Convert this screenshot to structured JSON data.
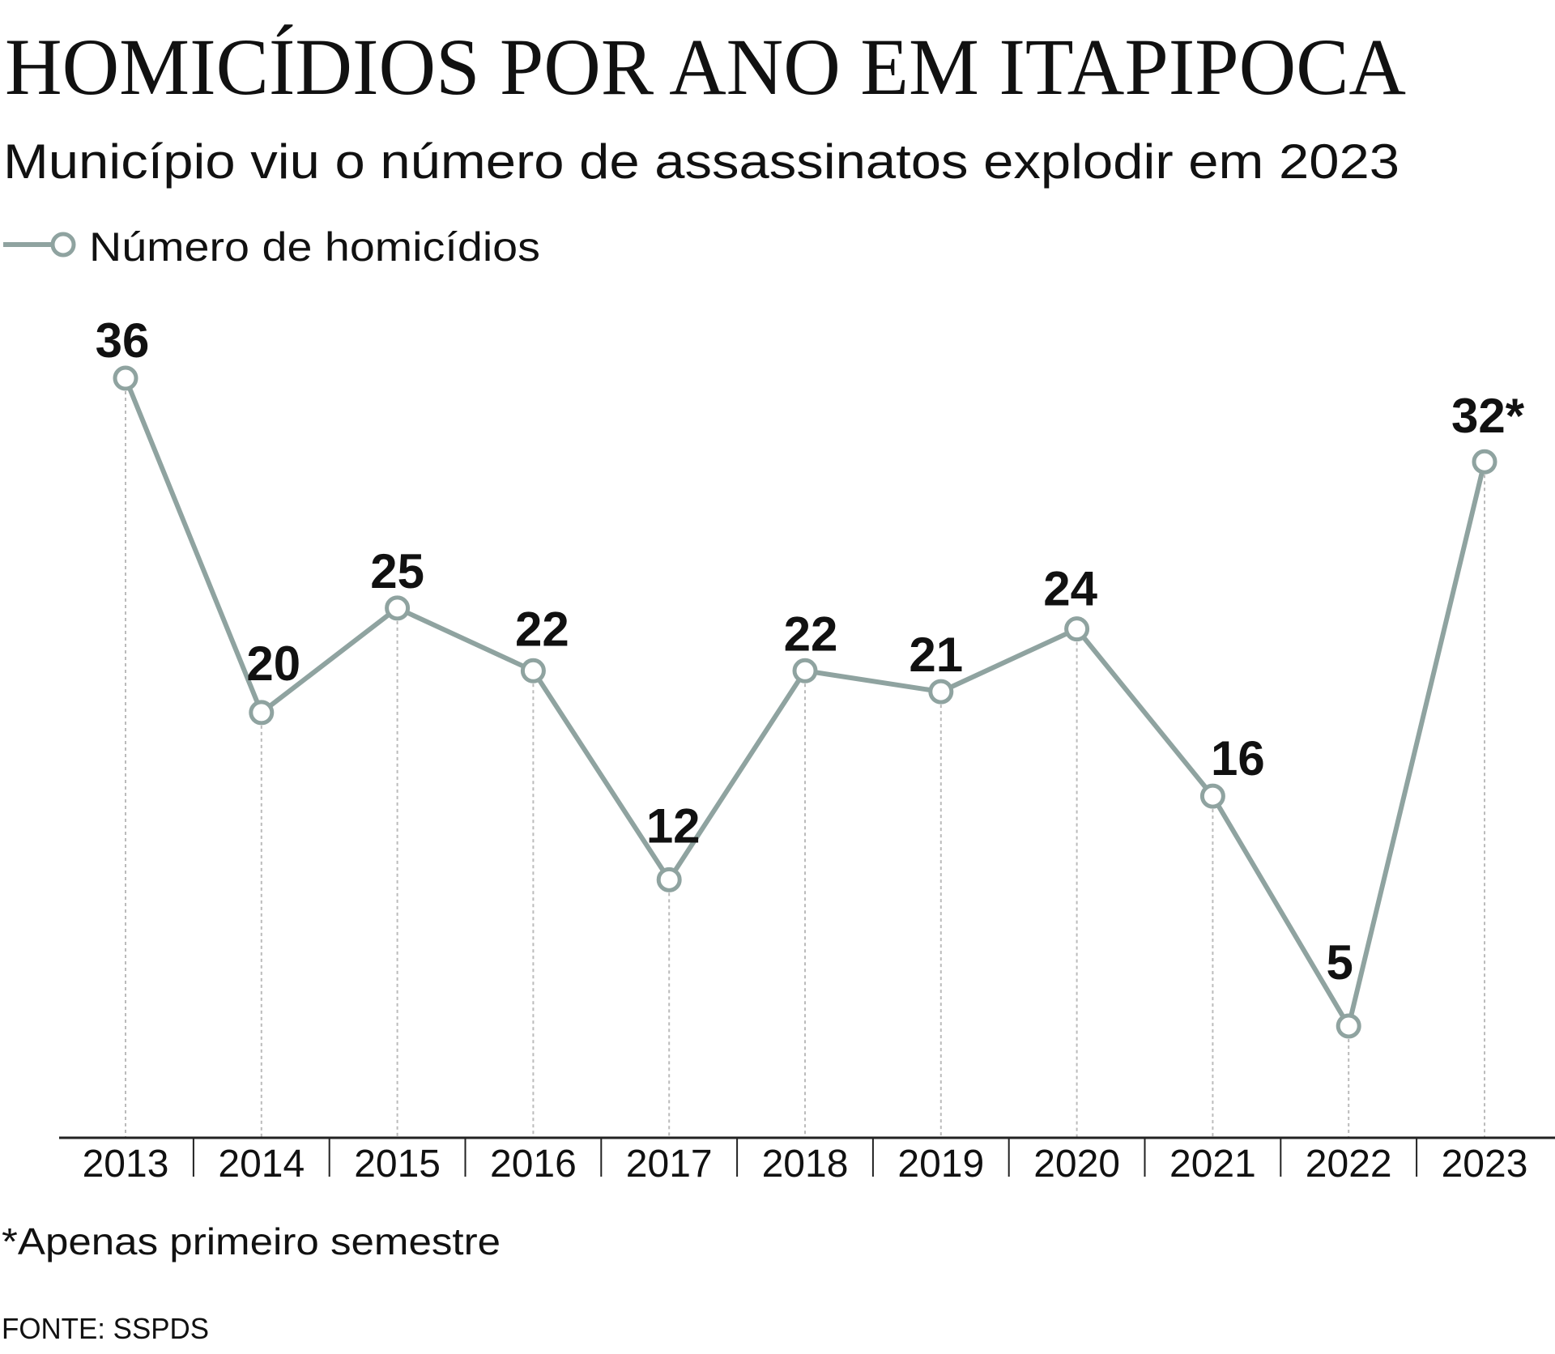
{
  "chart_data": {
    "type": "line",
    "title": "HOMICÍDIOS POR ANO EM ITAPIPOCA",
    "subtitle": "Município viu o número de assassinatos explodir em 2023",
    "legend": {
      "label": "Número de homicídios",
      "placement": "top-left"
    },
    "categories": [
      "2013",
      "2014",
      "2015",
      "2016",
      "2017",
      "2018",
      "2019",
      "2020",
      "2021",
      "2022",
      "2023"
    ],
    "series": [
      {
        "name": "Número de homicídios",
        "values": [
          36,
          20,
          25,
          22,
          12,
          22,
          21,
          24,
          16,
          5,
          32
        ],
        "labels": [
          "36",
          "20",
          "25",
          "22",
          "12",
          "22",
          "21",
          "24",
          "16",
          "5",
          "32*"
        ]
      }
    ],
    "ylim": [
      0,
      36
    ],
    "grid": "dotted vertical drop lines",
    "color": "#8fa3a0",
    "footnote": "*Apenas primeiro semestre",
    "source": "FONTE: SSPDS"
  }
}
